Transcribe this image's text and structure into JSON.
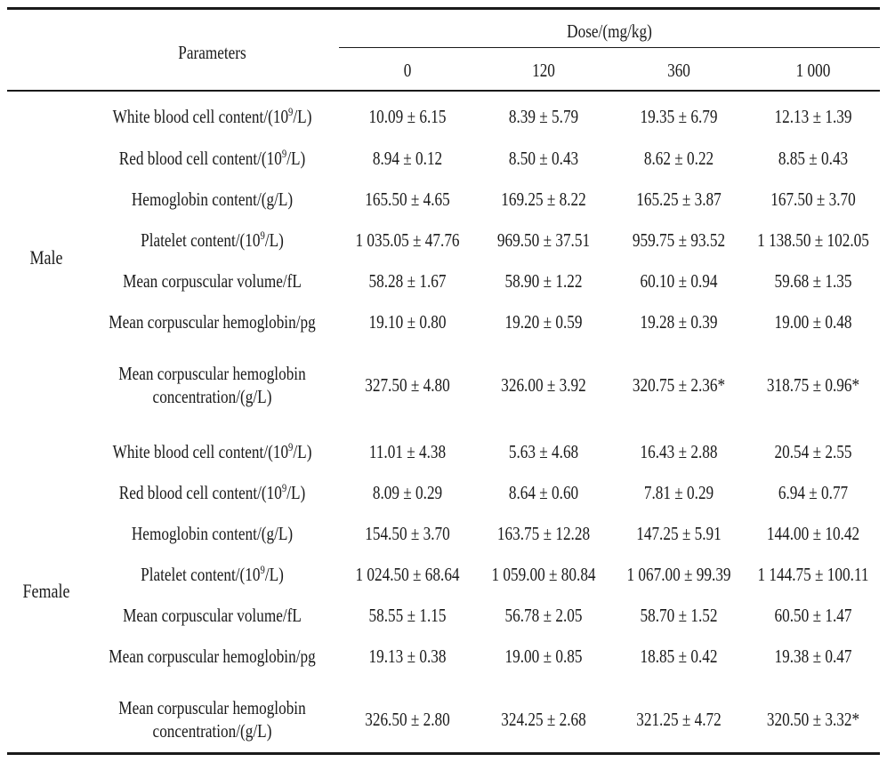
{
  "table": {
    "header": {
      "parameters": "Parameters",
      "dose_label": "Dose/(mg/kg)",
      "doses": [
        "0",
        "120",
        "360",
        "1 000"
      ]
    },
    "groups": [
      {
        "sex": "Male",
        "rows": [
          {
            "param_pre": "White blood cell content/(10",
            "param_sup": "9",
            "param_post": "/L)",
            "values": [
              "10.09 ± 6.15",
              "8.39 ± 5.79",
              "19.35 ± 6.79",
              "12.13 ± 1.39"
            ]
          },
          {
            "param_pre": "Red blood cell content/(10",
            "param_sup": "9",
            "param_post": "/L)",
            "values": [
              "8.94 ± 0.12",
              "8.50 ± 0.43",
              "8.62 ± 0.22",
              "8.85 ± 0.43"
            ]
          },
          {
            "param_pre": "Hemoglobin content/(g/L)",
            "param_sup": "",
            "param_post": "",
            "values": [
              "165.50 ± 4.65",
              "169.25 ± 8.22",
              "165.25 ± 3.87",
              "167.50 ± 3.70"
            ]
          },
          {
            "param_pre": "Platelet content/(10",
            "param_sup": "9",
            "param_post": "/L)",
            "values": [
              "1 035.05 ± 47.76",
              "969.50 ± 37.51",
              "959.75 ± 93.52",
              "1 138.50 ± 102.05"
            ]
          },
          {
            "param_pre": "Mean corpuscular volume/fL",
            "param_sup": "",
            "param_post": "",
            "values": [
              "58.28 ± 1.67",
              "58.90 ± 1.22",
              "60.10 ± 0.94",
              "59.68 ± 1.35"
            ]
          },
          {
            "param_pre": "Mean corpuscular hemoglobin/pg",
            "param_sup": "",
            "param_post": "",
            "values": [
              "19.10 ± 0.80",
              "19.20 ± 0.59",
              "19.28 ± 0.39",
              "19.00 ± 0.48"
            ]
          },
          {
            "param_pre": "Mean corpuscular hemoglobin",
            "param_sup": "",
            "param_post": "concentration/(g/L)",
            "values": [
              "327.50 ± 4.80",
              "326.00 ± 3.92",
              "320.75 ± 2.36*",
              "318.75 ± 0.96*"
            ]
          }
        ]
      },
      {
        "sex": "Female",
        "rows": [
          {
            "param_pre": "White blood cell content/(10",
            "param_sup": "9",
            "param_post": "/L)",
            "values": [
              "11.01 ± 4.38",
              "5.63 ± 4.68",
              "16.43 ± 2.88",
              "20.54 ± 2.55"
            ]
          },
          {
            "param_pre": "Red blood cell content/(10",
            "param_sup": "9",
            "param_post": "/L)",
            "values": [
              "8.09 ± 0.29",
              "8.64 ± 0.60",
              "7.81 ± 0.29",
              "6.94 ± 0.77"
            ]
          },
          {
            "param_pre": "Hemoglobin content/(g/L)",
            "param_sup": "",
            "param_post": "",
            "values": [
              "154.50 ± 3.70",
              "163.75 ± 12.28",
              "147.25 ± 5.91",
              "144.00 ± 10.42"
            ]
          },
          {
            "param_pre": "Platelet content/(10",
            "param_sup": "9",
            "param_post": "/L)",
            "values": [
              "1 024.50 ± 68.64",
              "1 059.00 ± 80.84",
              "1 067.00 ± 99.39",
              "1 144.75 ± 100.11"
            ]
          },
          {
            "param_pre": "Mean corpuscular volume/fL",
            "param_sup": "",
            "param_post": "",
            "values": [
              "58.55 ± 1.15",
              "56.78 ± 2.05",
              "58.70 ± 1.52",
              "60.50 ± 1.47"
            ]
          },
          {
            "param_pre": "Mean corpuscular hemoglobin/pg",
            "param_sup": "",
            "param_post": "",
            "values": [
              "19.13 ± 0.38",
              "19.00 ± 0.85",
              "18.85 ± 0.42",
              "19.38 ± 0.47"
            ]
          },
          {
            "param_pre": "Mean corpuscular hemoglobin",
            "param_sup": "",
            "param_post": "concentration/(g/L)",
            "values": [
              "326.50 ± 2.80",
              "324.25 ± 2.68",
              "321.25 ± 4.72",
              "320.50 ± 3.32*"
            ]
          }
        ]
      }
    ]
  }
}
